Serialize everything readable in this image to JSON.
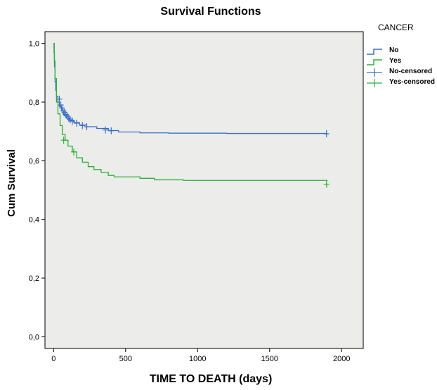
{
  "chart_data": {
    "type": "line",
    "title": "Survival Functions",
    "xlabel": "TIME TO DEATH (days)",
    "ylabel": "Cum Survival",
    "xlim": [
      -60,
      2150
    ],
    "ylim": [
      -0.04,
      1.04
    ],
    "xticks": [
      "0",
      "500",
      "1000",
      "1500",
      "2000"
    ],
    "xtick_values": [
      0,
      500,
      1000,
      1500,
      2000
    ],
    "yticks": [
      "0,0",
      "0,2",
      "0,4",
      "0,6",
      "0,8",
      "1,0"
    ],
    "ytick_values": [
      0,
      0.2,
      0.4,
      0.6,
      0.8,
      1.0
    ],
    "grid": false,
    "background": "#ececea",
    "legend_placement": "right",
    "legend_title": "CANCER",
    "legend": [
      "No",
      "Yes",
      "No-censored",
      "Yes-censored"
    ],
    "series": [
      {
        "name": "No",
        "color": "#3a6fc4",
        "points": [
          [
            0,
            1.0
          ],
          [
            3,
            0.97
          ],
          [
            6,
            0.92
          ],
          [
            10,
            0.87
          ],
          [
            15,
            0.84
          ],
          [
            20,
            0.82
          ],
          [
            30,
            0.8
          ],
          [
            40,
            0.785
          ],
          [
            55,
            0.77
          ],
          [
            70,
            0.755
          ],
          [
            90,
            0.745
          ],
          [
            110,
            0.738
          ],
          [
            140,
            0.73
          ],
          [
            180,
            0.722
          ],
          [
            230,
            0.716
          ],
          [
            300,
            0.71
          ],
          [
            380,
            0.703
          ],
          [
            450,
            0.698
          ],
          [
            600,
            0.695
          ],
          [
            800,
            0.694
          ],
          [
            1200,
            0.693
          ],
          [
            1900,
            0.693
          ]
        ],
        "censored": [
          [
            40,
            0.81
          ],
          [
            50,
            0.79
          ],
          [
            58,
            0.78
          ],
          [
            66,
            0.77
          ],
          [
            75,
            0.765
          ],
          [
            85,
            0.758
          ],
          [
            95,
            0.752
          ],
          [
            105,
            0.745
          ],
          [
            115,
            0.74
          ],
          [
            130,
            0.735
          ],
          [
            160,
            0.728
          ],
          [
            200,
            0.72
          ],
          [
            230,
            0.716
          ],
          [
            360,
            0.705
          ],
          [
            400,
            0.702
          ],
          [
            1895,
            0.692
          ]
        ]
      },
      {
        "name": "Yes",
        "color": "#2fae3a",
        "points": [
          [
            0,
            1.0
          ],
          [
            5,
            0.94
          ],
          [
            10,
            0.88
          ],
          [
            20,
            0.8
          ],
          [
            30,
            0.76
          ],
          [
            45,
            0.72
          ],
          [
            60,
            0.69
          ],
          [
            80,
            0.67
          ],
          [
            100,
            0.65
          ],
          [
            130,
            0.63
          ],
          [
            160,
            0.61
          ],
          [
            200,
            0.595
          ],
          [
            240,
            0.58
          ],
          [
            280,
            0.57
          ],
          [
            330,
            0.56
          ],
          [
            380,
            0.55
          ],
          [
            420,
            0.545
          ],
          [
            600,
            0.54
          ],
          [
            700,
            0.535
          ],
          [
            900,
            0.533
          ],
          [
            1900,
            0.532
          ]
        ],
        "censored": [
          [
            70,
            0.67
          ],
          [
            140,
            0.63
          ],
          [
            1895,
            0.52
          ]
        ]
      }
    ]
  }
}
